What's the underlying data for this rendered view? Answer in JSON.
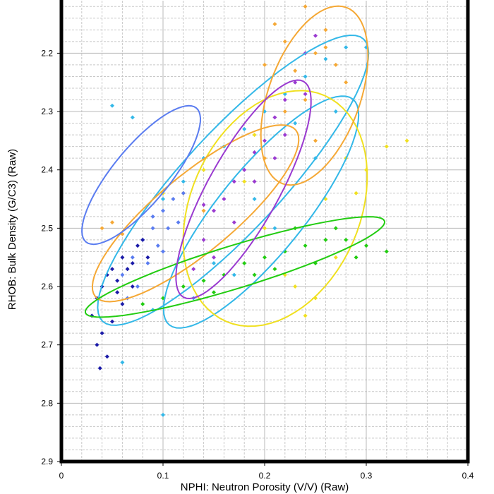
{
  "chart_data": {
    "type": "scatter",
    "x_label": "NPHI: Neutron Porosity (V/V) (Raw)",
    "y_label": "RHOB: Bulk Density (G/C3) (Raw)",
    "xlim": [
      0,
      0.4
    ],
    "ylim": [
      2.9,
      2.11
    ],
    "xticks": [
      0,
      0.1,
      0.2,
      0.3,
      0.4
    ],
    "yticks": [
      2.2,
      2.3,
      2.4,
      2.5,
      2.6,
      2.7,
      2.8,
      2.9
    ],
    "grid": true,
    "minor_divisions": 5,
    "series": [
      {
        "color": "#33b8e8",
        "x": [
          0.05,
          0.07,
          0.1,
          0.12,
          0.14,
          0.16,
          0.18,
          0.2,
          0.22,
          0.24,
          0.26,
          0.28,
          0.3,
          0.09,
          0.13,
          0.17,
          0.21,
          0.25,
          0.27,
          0.06,
          0.1,
          0.15,
          0.19,
          0.23
        ],
        "values": [
          2.29,
          2.31,
          2.45,
          2.42,
          2.38,
          2.36,
          2.33,
          2.3,
          2.27,
          2.24,
          2.21,
          2.19,
          2.19,
          2.64,
          2.62,
          2.58,
          2.5,
          2.38,
          2.3,
          2.73,
          2.82,
          2.56,
          2.45,
          2.32
        ],
        "ellipses": [
          {
            "center": [
              0.169,
              2.4178
            ],
            "axis1": [
              0.1285,
              -0.2418
            ],
            "axis2": [
              0.0354,
              0.058
            ]
          },
          {
            "center": [
              0.1965,
              2.4723
            ],
            "axis1": [
              0.0903,
              -0.1935
            ],
            "axis2": [
              0.0326,
              0.0459
            ]
          }
        ]
      },
      {
        "color": "#f0e020",
        "x": [
          0.1,
          0.14,
          0.18,
          0.2,
          0.22,
          0.24,
          0.26,
          0.28,
          0.3,
          0.32,
          0.34,
          0.25,
          0.23,
          0.27,
          0.19,
          0.29
        ],
        "values": [
          2.44,
          2.4,
          2.42,
          2.5,
          2.58,
          2.65,
          2.45,
          2.38,
          2.4,
          2.36,
          2.35,
          2.62,
          2.6,
          2.55,
          2.34,
          2.44
        ],
        "ellipses": [
          {
            "center": [
              0.2104,
              2.4661
            ],
            "axis1": [
              0.0486,
              -0.1935
            ],
            "axis2": [
              0.0764,
              0.058
            ]
          }
        ]
      },
      {
        "color": "#f5a835",
        "x": [
          0.2,
          0.21,
          0.22,
          0.23,
          0.24,
          0.25,
          0.26,
          0.27,
          0.28,
          0.22,
          0.24,
          0.04,
          0.05,
          0.06,
          0.12,
          0.14,
          0.2,
          0.26,
          0.25
        ],
        "values": [
          2.22,
          2.15,
          2.18,
          2.23,
          2.12,
          2.2,
          2.16,
          2.22,
          2.25,
          2.3,
          2.28,
          2.5,
          2.49,
          2.51,
          2.44,
          2.47,
          2.38,
          2.19,
          2.35
        ],
        "ellipses": [
          {
            "center": [
              0.249,
              2.2726
            ],
            "axis1": [
              0.0313,
              -0.1511
            ],
            "axis2": [
              0.0424,
              0.0266
            ]
          },
          {
            "center": [
              0.132,
              2.4745
            ],
            "axis1": [
              0.0986,
              -0.1427
            ],
            "axis2": [
              0.0243,
              0.0508
            ]
          }
        ]
      },
      {
        "color": "#22cc11",
        "x": [
          0.08,
          0.1,
          0.12,
          0.14,
          0.16,
          0.18,
          0.2,
          0.22,
          0.24,
          0.26,
          0.28,
          0.3,
          0.32,
          0.15,
          0.19,
          0.23,
          0.27,
          0.21,
          0.25,
          0.29
        ],
        "values": [
          2.63,
          2.62,
          2.6,
          2.59,
          2.58,
          2.56,
          2.55,
          2.54,
          2.53,
          2.52,
          2.52,
          2.53,
          2.54,
          2.61,
          2.58,
          2.5,
          2.5,
          2.57,
          2.56,
          2.55
        ],
        "ellipses": [
          {
            "center": [
              0.1708,
              2.5664
            ],
            "axis1": [
              0.1472,
              -0.0786
            ],
            "axis2": [
              0.0063,
              0.0351
            ]
          }
        ]
      },
      {
        "color": "#9a3ad0",
        "x": [
          0.13,
          0.14,
          0.15,
          0.16,
          0.17,
          0.18,
          0.19,
          0.2,
          0.21,
          0.22,
          0.23,
          0.24,
          0.25,
          0.15,
          0.17,
          0.19,
          0.21,
          0.14,
          0.22,
          0.24
        ],
        "values": [
          2.57,
          2.52,
          2.47,
          2.45,
          2.42,
          2.4,
          2.37,
          2.35,
          2.31,
          2.28,
          2.25,
          2.2,
          2.17,
          2.55,
          2.49,
          2.42,
          2.38,
          2.46,
          2.34,
          2.27
        ],
        "ellipses": [
          {
            "center": [
              0.1792,
              2.4333
            ],
            "axis1": [
              0.059,
              -0.185
            ],
            "axis2": [
              0.0306,
              0.029
            ]
          }
        ]
      },
      {
        "color": "#5a7cf0",
        "x": [
          0.06,
          0.07,
          0.08,
          0.09,
          0.1,
          0.11,
          0.12,
          0.075,
          0.085,
          0.095,
          0.105,
          0.065,
          0.09,
          0.115,
          0.1
        ],
        "values": [
          2.58,
          2.55,
          2.52,
          2.5,
          2.47,
          2.45,
          2.44,
          2.6,
          2.56,
          2.53,
          2.5,
          2.62,
          2.48,
          2.49,
          2.54
        ],
        "ellipses": [
          {
            "center": [
              0.0785,
              2.4088
            ],
            "axis1": [
              0.0542,
              -0.1149
            ],
            "axis2": [
              0.0215,
              0.0302
            ]
          }
        ]
      },
      {
        "color": "#1a1aa8",
        "x": [
          0.03,
          0.035,
          0.04,
          0.045,
          0.05,
          0.055,
          0.06,
          0.065,
          0.07,
          0.075,
          0.08,
          0.085,
          0.04,
          0.05,
          0.06,
          0.035,
          0.045,
          0.07,
          0.038,
          0.055
        ],
        "values": [
          2.65,
          2.62,
          2.6,
          2.58,
          2.57,
          2.59,
          2.55,
          2.57,
          2.56,
          2.53,
          2.52,
          2.55,
          2.68,
          2.66,
          2.63,
          2.7,
          2.72,
          2.6,
          2.74,
          2.61
        ]
      }
    ]
  }
}
